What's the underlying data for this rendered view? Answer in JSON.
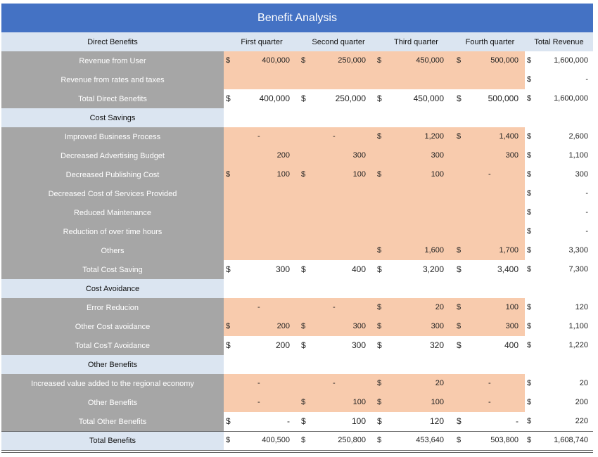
{
  "title": "Benefit Analysis",
  "headers": [
    "Direct Benefits",
    "First quarter",
    "Second quarter",
    "Third quarter",
    "Fourth quarter",
    "Total Revenue"
  ],
  "rows": [
    {
      "label": "Revenue from User",
      "kind": "data",
      "cells": [
        [
          "$",
          "400,000"
        ],
        [
          "$",
          "250,000"
        ],
        [
          "$",
          "450,000"
        ],
        [
          "$",
          "500,000"
        ]
      ],
      "total": [
        "$",
        "1,600,000"
      ]
    },
    {
      "label": "Revenue from rates and taxes",
      "kind": "data",
      "cells": [
        [
          "",
          ""
        ],
        [
          "",
          ""
        ],
        [
          "",
          ""
        ],
        [
          "",
          ""
        ]
      ],
      "total": [
        "$",
        "-"
      ]
    },
    {
      "label": "Total Direct Benefits",
      "kind": "subtotal",
      "cells": [
        [
          "$",
          "400,000"
        ],
        [
          "$",
          "250,000"
        ],
        [
          "$",
          "450,000"
        ],
        [
          "$",
          "500,000"
        ]
      ],
      "total": [
        "$",
        "1,600,000"
      ]
    },
    {
      "label": "Cost Savings",
      "kind": "section"
    },
    {
      "label": "Improved Business Process",
      "kind": "data",
      "cells": [
        [
          "",
          "-"
        ],
        [
          "",
          "-"
        ],
        [
          "$",
          "1,200"
        ],
        [
          "$",
          "1,400"
        ]
      ],
      "total": [
        "$",
        "2,600"
      ]
    },
    {
      "label": "Decreased Advertising Budget",
      "kind": "data",
      "cells": [
        [
          "",
          "200"
        ],
        [
          "",
          "300"
        ],
        [
          "",
          "300"
        ],
        [
          "",
          "300"
        ]
      ],
      "total": [
        "$",
        "1,100"
      ]
    },
    {
      "label": "Decreased Publishing Cost",
      "kind": "data",
      "cells": [
        [
          "$",
          "100"
        ],
        [
          "$",
          "100"
        ],
        [
          "$",
          "100"
        ],
        [
          "",
          "-"
        ]
      ],
      "total": [
        "$",
        "300"
      ]
    },
    {
      "label": "Decreased Cost of Services Provided",
      "kind": "data",
      "cells": [
        [
          "",
          ""
        ],
        [
          "",
          ""
        ],
        [
          "",
          ""
        ],
        [
          "",
          ""
        ]
      ],
      "total": [
        "$",
        "-"
      ]
    },
    {
      "label": "Reduced Maintenance",
      "kind": "data",
      "cells": [
        [
          "",
          ""
        ],
        [
          "",
          ""
        ],
        [
          "",
          ""
        ],
        [
          "",
          ""
        ]
      ],
      "total": [
        "$",
        "-"
      ]
    },
    {
      "label": "Reduction  of over time hours",
      "kind": "data",
      "cells": [
        [
          "",
          ""
        ],
        [
          "",
          ""
        ],
        [
          "",
          ""
        ],
        [
          "",
          ""
        ]
      ],
      "total": [
        "$",
        "-"
      ]
    },
    {
      "label": "Others",
      "kind": "data",
      "cells": [
        [
          "",
          ""
        ],
        [
          "",
          ""
        ],
        [
          "$",
          "1,600"
        ],
        [
          "$",
          "1,700"
        ]
      ],
      "total": [
        "$",
        "3,300"
      ]
    },
    {
      "label": "Total Cost Saving",
      "kind": "subtotal",
      "cells": [
        [
          "$",
          "300"
        ],
        [
          "$",
          "400"
        ],
        [
          "$",
          "3,200"
        ],
        [
          "$",
          "3,400"
        ]
      ],
      "total": [
        "$",
        "7,300"
      ]
    },
    {
      "label": "Cost Avoidance",
      "kind": "section"
    },
    {
      "label": "Error Reducion",
      "kind": "data",
      "cells": [
        [
          "",
          "-"
        ],
        [
          "",
          "-"
        ],
        [
          "$",
          "20"
        ],
        [
          "$",
          "100"
        ]
      ],
      "total": [
        "$",
        "120"
      ]
    },
    {
      "label": "Other Cost avoidance",
      "kind": "data",
      "cells": [
        [
          "$",
          "200"
        ],
        [
          "$",
          "300"
        ],
        [
          "$",
          "300"
        ],
        [
          "$",
          "300"
        ]
      ],
      "total": [
        "$",
        "1,100"
      ]
    },
    {
      "label": "Total  CosT Avoidance",
      "kind": "subtotal",
      "cells": [
        [
          "$",
          "200"
        ],
        [
          "$",
          "300"
        ],
        [
          "$",
          "320"
        ],
        [
          "$",
          "400"
        ]
      ],
      "total": [
        "$",
        "1,220"
      ]
    },
    {
      "label": "Other Benefits",
      "kind": "section"
    },
    {
      "label": "Increased value added to the regional economy",
      "kind": "data",
      "cells": [
        [
          "",
          "-"
        ],
        [
          "",
          "-"
        ],
        [
          "$",
          "20"
        ],
        [
          "",
          "-"
        ]
      ],
      "total": [
        "$",
        "20"
      ]
    },
    {
      "label": "Other Benefits",
      "kind": "data",
      "cells": [
        [
          "",
          "-"
        ],
        [
          "$",
          "100"
        ],
        [
          "$",
          "100"
        ],
        [
          "",
          "-"
        ]
      ],
      "total": [
        "$",
        "200"
      ]
    },
    {
      "label": "Total  Other Benefits",
      "kind": "subtotal",
      "cells": [
        [
          "$",
          "-"
        ],
        [
          "$",
          "100"
        ],
        [
          "$",
          "120"
        ],
        [
          "$",
          "-"
        ]
      ],
      "total": [
        "$",
        "220"
      ]
    },
    {
      "label": "Total Benefits",
      "kind": "grand",
      "cells": [
        [
          "$",
          "400,500"
        ],
        [
          "$",
          "250,800"
        ],
        [
          "$",
          "453,640"
        ],
        [
          "$",
          "503,800"
        ]
      ],
      "total": [
        "$",
        "1,608,740"
      ]
    }
  ],
  "colors": {
    "title": "#4472c4",
    "header": "#dbe5f1",
    "label": "#a6a6a6",
    "value": "#f8cbad"
  }
}
